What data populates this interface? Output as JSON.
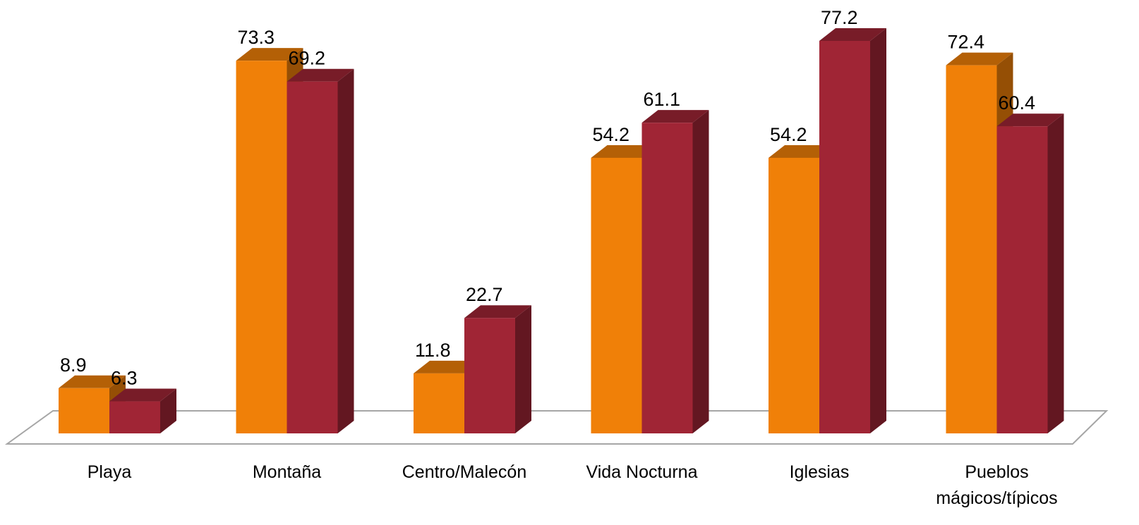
{
  "chart_data": {
    "type": "bar3d",
    "categories": [
      "Playa",
      "Montaña",
      "Centro/Malecón",
      "Vida Nocturna",
      "Iglesias",
      "Pueblos mágicos/típicos"
    ],
    "series": [
      {
        "color": "#f08008",
        "values": [
          8.9,
          73.3,
          11.8,
          54.2,
          54.2,
          72.4
        ]
      },
      {
        "color": "#a02535",
        "values": [
          6.3,
          69.2,
          22.7,
          61.1,
          77.2,
          60.4
        ]
      }
    ]
  }
}
